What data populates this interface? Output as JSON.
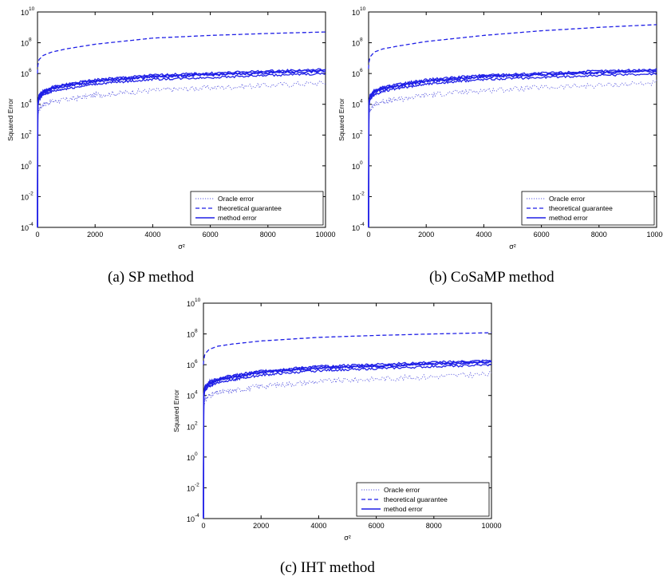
{
  "colors": {
    "method": "#1f1fe6",
    "oracle": "#5a5ae0",
    "guarantee": "#1f1fe6",
    "axis": "#000000"
  },
  "chart_data": [
    {
      "type": "line",
      "caption": "(a)  SP method",
      "xlabel": "σ²",
      "ylabel": "Squared Error",
      "xlim": [
        0,
        10000
      ],
      "ylim_exponents": [
        -4,
        10
      ],
      "log_y": true,
      "grid": false,
      "legend_position": "bottom-right",
      "xticks": [
        "0",
        "2000",
        "4000",
        "6000",
        "8000",
        "10000"
      ],
      "yticks": [
        {
          "base": "10",
          "exp": "-4"
        },
        {
          "base": "10",
          "exp": "-2"
        },
        {
          "base": "10",
          "exp": "0"
        },
        {
          "base": "10",
          "exp": "2"
        },
        {
          "base": "10",
          "exp": "4"
        },
        {
          "base": "10",
          "exp": "6"
        },
        {
          "base": "10",
          "exp": "8"
        },
        {
          "base": "10",
          "exp": "10"
        }
      ],
      "series": [
        {
          "name": "Oracle error",
          "style": "dotted",
          "x": [
            0,
            10,
            50,
            200,
            500,
            1000,
            2000,
            4000,
            6000,
            8000,
            10000
          ],
          "y": [
            0.001,
            2000,
            5000,
            10000,
            15000,
            20000,
            40000,
            80000,
            120000,
            170000,
            250000
          ]
        },
        {
          "name": "theoretical guarantee",
          "style": "dashed",
          "x": [
            0,
            10,
            50,
            200,
            500,
            1000,
            2000,
            4000,
            6000,
            8000,
            10000
          ],
          "y": [
            1000000,
            3000000,
            8000000,
            15000000,
            25000000,
            40000000,
            80000000,
            200000000,
            300000000,
            400000000,
            500000000
          ]
        },
        {
          "name": "method error",
          "style": "solid",
          "x": [
            0,
            10,
            50,
            200,
            500,
            1000,
            2000,
            4000,
            6000,
            8000,
            10000
          ],
          "y": [
            0.0001,
            10000,
            30000,
            60000,
            100000,
            150000,
            300000,
            600000,
            800000,
            1100000,
            1400000
          ]
        }
      ]
    },
    {
      "type": "line",
      "caption": "(b)  CoSaMP method",
      "xlabel": "σ²",
      "ylabel": "Squared Error",
      "xlim": [
        0,
        10000
      ],
      "ylim_exponents": [
        -4,
        10
      ],
      "log_y": true,
      "grid": false,
      "legend_position": "bottom-right",
      "xticks": [
        "0",
        "2000",
        "4000",
        "6000",
        "8000",
        "10000"
      ],
      "yticks": [
        {
          "base": "10",
          "exp": "-4"
        },
        {
          "base": "10",
          "exp": "-2"
        },
        {
          "base": "10",
          "exp": "0"
        },
        {
          "base": "10",
          "exp": "2"
        },
        {
          "base": "10",
          "exp": "4"
        },
        {
          "base": "10",
          "exp": "6"
        },
        {
          "base": "10",
          "exp": "8"
        },
        {
          "base": "10",
          "exp": "10"
        }
      ],
      "series": [
        {
          "name": "Oracle error",
          "style": "dotted",
          "x": [
            0,
            10,
            50,
            200,
            500,
            1000,
            2000,
            4000,
            6000,
            8000,
            10000
          ],
          "y": [
            0.001,
            2000,
            5000,
            10000,
            15000,
            20000,
            40000,
            80000,
            120000,
            170000,
            250000
          ]
        },
        {
          "name": "theoretical guarantee",
          "style": "dashed",
          "x": [
            0,
            10,
            50,
            200,
            500,
            1000,
            2000,
            4000,
            6000,
            8000,
            10000
          ],
          "y": [
            2000000,
            5000000,
            12000000,
            25000000,
            40000000,
            60000000,
            120000000,
            300000000,
            600000000,
            1000000000,
            1500000000
          ]
        },
        {
          "name": "method error",
          "style": "solid",
          "x": [
            0,
            10,
            50,
            200,
            500,
            1000,
            2000,
            4000,
            6000,
            8000,
            10000
          ],
          "y": [
            0.0001,
            10000,
            30000,
            60000,
            100000,
            150000,
            300000,
            600000,
            800000,
            1100000,
            1400000
          ]
        }
      ]
    },
    {
      "type": "line",
      "caption": "(c)  IHT method",
      "xlabel": "σ²",
      "ylabel": "Squared Error",
      "xlim": [
        0,
        10000
      ],
      "ylim_exponents": [
        -4,
        10
      ],
      "log_y": true,
      "grid": false,
      "legend_position": "bottom-right",
      "xticks": [
        "0",
        "2000",
        "4000",
        "6000",
        "8000",
        "10000"
      ],
      "yticks": [
        {
          "base": "10",
          "exp": "-4"
        },
        {
          "base": "10",
          "exp": "-2"
        },
        {
          "base": "10",
          "exp": "0"
        },
        {
          "base": "10",
          "exp": "2"
        },
        {
          "base": "10",
          "exp": "4"
        },
        {
          "base": "10",
          "exp": "6"
        },
        {
          "base": "10",
          "exp": "8"
        },
        {
          "base": "10",
          "exp": "10"
        }
      ],
      "series": [
        {
          "name": "Oracle error",
          "style": "dotted",
          "x": [
            0,
            10,
            50,
            200,
            500,
            1000,
            2000,
            4000,
            6000,
            8000,
            10000
          ],
          "y": [
            0.001,
            2000,
            5000,
            10000,
            15000,
            20000,
            40000,
            80000,
            120000,
            170000,
            250000
          ]
        },
        {
          "name": "theoretical guarantee",
          "style": "dashed",
          "x": [
            0,
            10,
            50,
            200,
            500,
            1000,
            2000,
            4000,
            6000,
            8000,
            10000
          ],
          "y": [
            1000000,
            2000000,
            5000000,
            10000000,
            16000000,
            22000000,
            35000000,
            60000000,
            80000000,
            100000000,
            120000000
          ]
        },
        {
          "name": "method error",
          "style": "solid",
          "x": [
            0,
            10,
            50,
            200,
            500,
            1000,
            2000,
            4000,
            6000,
            8000,
            10000
          ],
          "y": [
            0.0001,
            10000,
            30000,
            60000,
            100000,
            150000,
            300000,
            600000,
            800000,
            1100000,
            1400000
          ]
        }
      ]
    }
  ]
}
